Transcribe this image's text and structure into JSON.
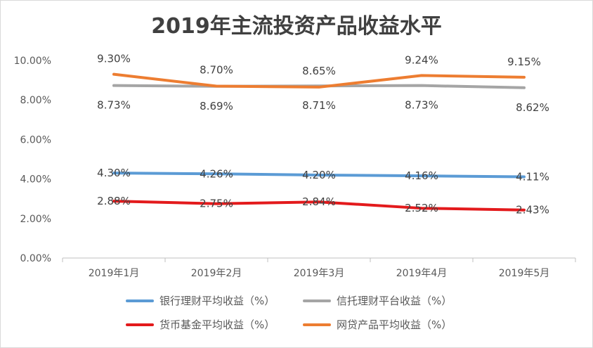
{
  "chart_data": {
    "type": "line",
    "title": "2019年主流投资产品收益水平",
    "categories": [
      "2019年1月",
      "2019年2月",
      "2019年3月",
      "2019年4月",
      "2019年5月"
    ],
    "ylim": [
      0,
      10
    ],
    "yticks": [
      "0.00%",
      "2.00%",
      "4.00%",
      "6.00%",
      "8.00%",
      "10.00%"
    ],
    "ytick_values": [
      0,
      2,
      4,
      6,
      8,
      10
    ],
    "grid": false,
    "legend_position": "bottom",
    "series": [
      {
        "name": "银行理财平均收益（%）",
        "color": "#5b9bd5",
        "values": [
          4.3,
          4.26,
          4.2,
          4.16,
          4.11
        ],
        "labels": [
          "4.30%",
          "4.26%",
          "4.20%",
          "4.16%",
          "4.11%"
        ]
      },
      {
        "name": "信托理财平台收益（%）",
        "color": "#a5a5a5",
        "values": [
          8.73,
          8.69,
          8.71,
          8.73,
          8.62
        ],
        "labels": [
          "8.73%",
          "8.69%",
          "8.71%",
          "8.73%",
          "8.62%"
        ]
      },
      {
        "name": "货币基金平均收益（%）",
        "color": "#e31a1c",
        "values": [
          2.88,
          2.75,
          2.84,
          2.52,
          2.43
        ],
        "labels": [
          "2.88%",
          "2.75%",
          "2.84%",
          "2.52%",
          "2.43%"
        ]
      },
      {
        "name": "网贷产品平均收益（%）",
        "color": "#ed7d31",
        "values": [
          9.3,
          8.7,
          8.65,
          9.24,
          9.15
        ],
        "labels": [
          "9.30%",
          "8.70%",
          "8.65%",
          "9.24%",
          "9.15%"
        ]
      }
    ]
  }
}
